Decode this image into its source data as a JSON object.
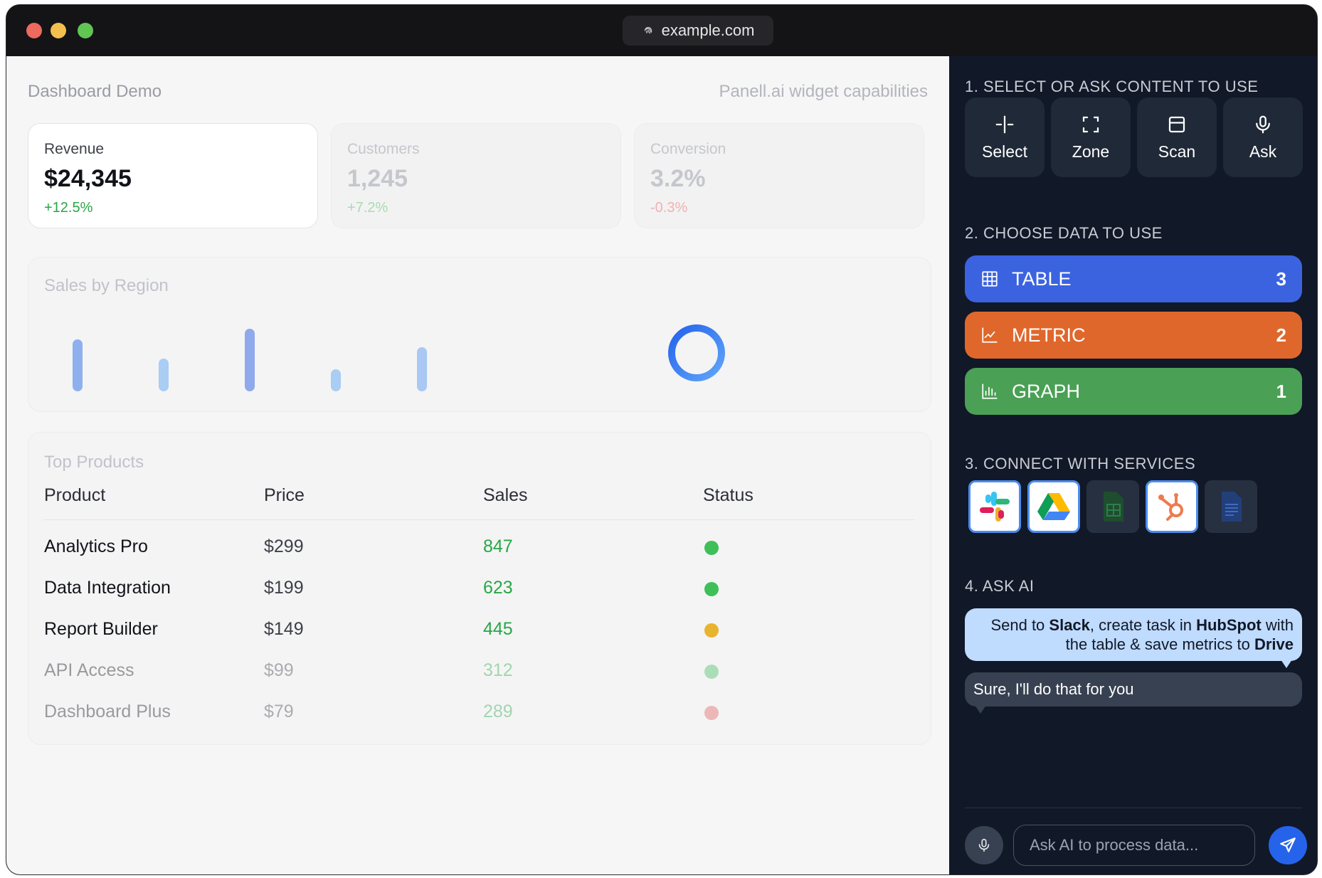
{
  "browser": {
    "url": "example.com"
  },
  "dashboard": {
    "title": "Dashboard Demo",
    "subtitle": "Panell.ai widget capabilities",
    "metrics": [
      {
        "label": "Revenue",
        "value": "$24,345",
        "delta": "+12.5%",
        "delta_color": "#28a745"
      },
      {
        "label": "Customers",
        "value": "1,245",
        "delta": "+7.2%",
        "delta_color": "#9ed6a5"
      },
      {
        "label": "Conversion",
        "value": "3.2%",
        "delta": "-0.3%",
        "delta_color": "#f2a8a8"
      }
    ],
    "sales_title": "Sales by Region",
    "products": {
      "title": "Top Products",
      "columns": [
        "Product",
        "Price",
        "Sales",
        "Status"
      ],
      "rows": [
        {
          "product": "Analytics Pro",
          "price": "$299",
          "sales": "847",
          "status_color": "#3fbf59"
        },
        {
          "product": "Data Integration",
          "price": "$199",
          "sales": "623",
          "status_color": "#3fbf59"
        },
        {
          "product": "Report Builder",
          "price": "$149",
          "sales": "445",
          "status_color": "#e8b32e"
        },
        {
          "product": "API Access",
          "price": "$99",
          "sales": "312",
          "status_color": "#3fbf59"
        },
        {
          "product": "Dashboard Plus",
          "price": "$79",
          "sales": "289",
          "status_color": "#e35d5d"
        }
      ]
    }
  },
  "chart_data": {
    "type": "bar",
    "title": "Sales by Region",
    "categories": [
      "",
      "",
      "",
      "",
      ""
    ],
    "values": [
      66,
      42,
      80,
      28,
      56
    ]
  },
  "sidebar": {
    "step1": "1. SELECT OR ASK CONTENT TO USE",
    "tools": [
      {
        "label": "Select",
        "icon": "crosshair-select-icon"
      },
      {
        "label": "Zone",
        "icon": "zone-frame-icon"
      },
      {
        "label": "Scan",
        "icon": "scan-window-icon"
      },
      {
        "label": "Ask",
        "icon": "microphone-icon"
      }
    ],
    "step2": "2. CHOOSE DATA TO USE",
    "data_types": [
      {
        "label": "TABLE",
        "count": "3",
        "color": "#3b63e0",
        "icon": "table-icon"
      },
      {
        "label": "METRIC",
        "count": "2",
        "color": "#e0672b",
        "icon": "metric-chart-icon"
      },
      {
        "label": "GRAPH",
        "count": "1",
        "color": "#4aa054",
        "icon": "bar-graph-icon"
      }
    ],
    "step3": "3. CONNECT WITH SERVICES",
    "services": [
      {
        "name": "slack-icon",
        "active": true
      },
      {
        "name": "google-drive-icon",
        "active": true
      },
      {
        "name": "google-sheets-icon",
        "active": false
      },
      {
        "name": "hubspot-icon",
        "active": true
      },
      {
        "name": "google-docs-icon",
        "active": false
      }
    ],
    "step4": "4. ASK AI",
    "chat": {
      "user_parts": [
        "Send to ",
        "Slack",
        ", create task in ",
        "HubSpot",
        " with the table & save metrics to ",
        "Drive"
      ],
      "ai_message": "Sure, I'll do that for you"
    },
    "input": {
      "placeholder": "Ask AI to process data...",
      "value": ""
    }
  }
}
